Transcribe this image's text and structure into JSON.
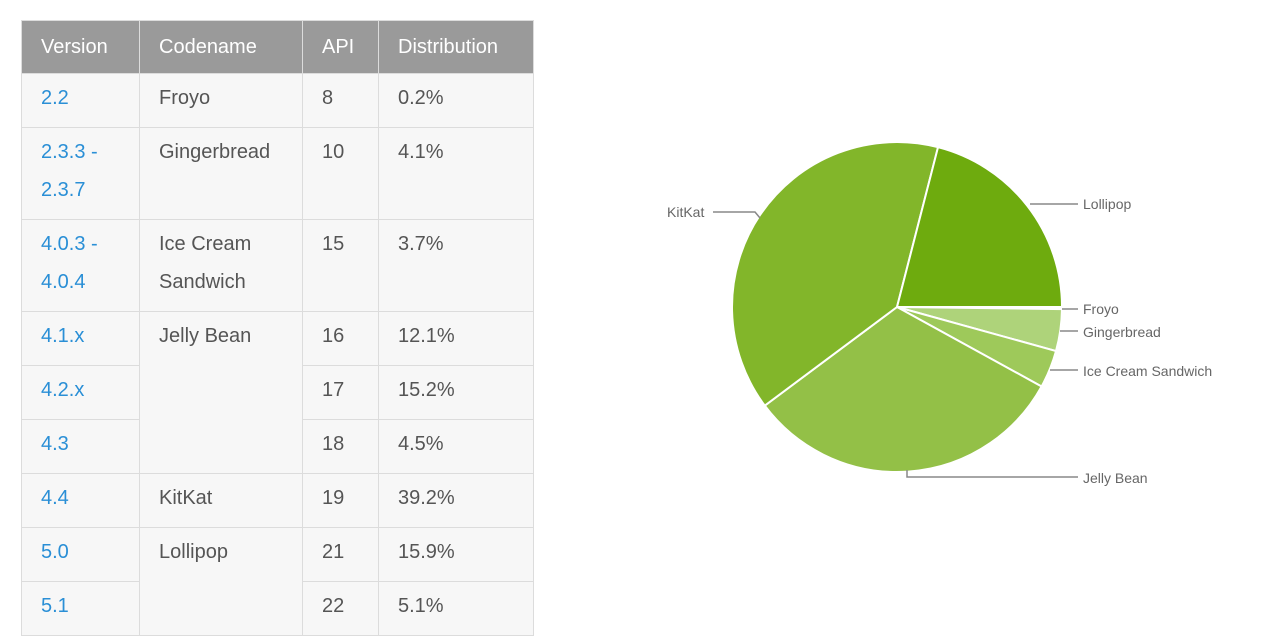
{
  "table": {
    "headers": [
      "Version",
      "Codename",
      "API",
      "Distribution"
    ],
    "rows": [
      {
        "version": "2.2",
        "codename": "Froyo",
        "api": "8",
        "distribution": "0.2%"
      },
      {
        "version": "2.3.3 - 2.3.7",
        "version_line1": "2.3.3 -",
        "version_line2": "2.3.7",
        "codename": "Gingerbread",
        "api": "10",
        "distribution": "4.1%"
      },
      {
        "version": "4.0.3 - 4.0.4",
        "version_line1": "4.0.3 -",
        "version_line2": "4.0.4",
        "codename": "Ice Cream Sandwich",
        "codename_line1": "Ice Cream",
        "codename_line2": "Sandwich",
        "api": "15",
        "distribution": "3.7%"
      },
      {
        "version": "4.1.x",
        "codename": "Jelly Bean",
        "api": "16",
        "distribution": "12.1%"
      },
      {
        "version": "4.2.x",
        "codename": "",
        "api": "17",
        "distribution": "15.2%"
      },
      {
        "version": "4.3",
        "codename": "",
        "api": "18",
        "distribution": "4.5%"
      },
      {
        "version": "4.4",
        "codename": "KitKat",
        "api": "19",
        "distribution": "39.2%"
      },
      {
        "version": "5.0",
        "codename": "Lollipop",
        "api": "21",
        "distribution": "15.9%"
      },
      {
        "version": "5.1",
        "codename": "",
        "api": "22",
        "distribution": "5.1%"
      }
    ]
  },
  "chart_data": {
    "type": "pie",
    "title": "",
    "categories": [
      "Froyo",
      "Gingerbread",
      "Ice Cream Sandwich",
      "Jelly Bean",
      "KitKat",
      "Lollipop"
    ],
    "values": [
      0.2,
      4.1,
      3.7,
      31.8,
      39.2,
      21.0
    ],
    "colors": [
      "#c6e29a",
      "#aed37a",
      "#9ec95a",
      "#93c047",
      "#82b62a",
      "#6eab0e"
    ],
    "start_angle": "3 o'clock, clockwise",
    "legend": "leader-line labels",
    "labels": {
      "froyo": "Froyo",
      "gingerbread": "Gingerbread",
      "ics": "Ice Cream Sandwich",
      "jellybean": "Jelly Bean",
      "kitkat": "KitKat",
      "lollipop": "Lollipop"
    }
  }
}
